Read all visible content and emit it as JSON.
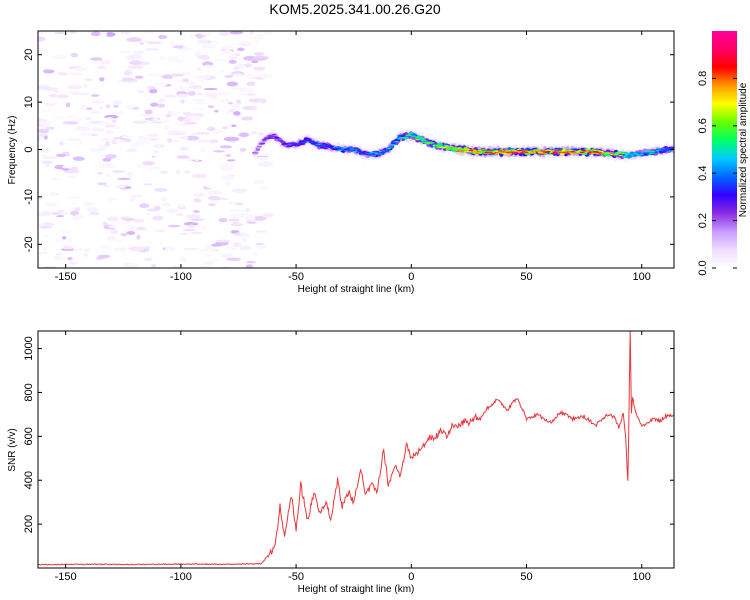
{
  "title": "KOM5.2025.341.00.26.G20",
  "chart_data": [
    {
      "type": "heatmap",
      "panel": "top",
      "xlabel": "Height of straight line (km)",
      "ylabel": "Frequency (Hz)",
      "xlim": [
        -162,
        114
      ],
      "ylim": [
        -25,
        25
      ],
      "xticks": [
        -150,
        -100,
        -50,
        0,
        50,
        100
      ],
      "yticks": [
        -20,
        -10,
        0,
        10,
        20
      ],
      "colorbar": {
        "label": "Normalized spectral amplitude",
        "range": [
          0,
          1
        ],
        "ticks": [
          0.0,
          0.2,
          0.4,
          0.6,
          0.8
        ],
        "colormap": [
          "#ffffff",
          "#f0dcff",
          "#c89cff",
          "#8a2be2",
          "#3300ff",
          "#0066ff",
          "#00ccff",
          "#00ff66",
          "#66ff00",
          "#ffff00",
          "#ff9900",
          "#ff0000",
          "#ff0066",
          "#ff0099"
        ]
      },
      "noise_region_x": [
        -162,
        -68
      ],
      "onset_x": -68,
      "ridge": {
        "x": [
          -68,
          -64,
          -60,
          -55,
          -50,
          -45,
          -40,
          -35,
          -30,
          -25,
          -20,
          -15,
          -10,
          -5,
          0,
          5,
          10,
          15,
          20,
          30,
          40,
          50,
          60,
          70,
          80,
          90,
          95,
          100,
          105,
          110,
          114
        ],
        "frequency": [
          -1,
          2,
          3,
          1,
          1,
          2,
          1,
          0.5,
          0,
          0,
          -1,
          -1,
          0,
          2.5,
          3,
          2,
          1,
          0.5,
          0,
          -0.5,
          -0.5,
          -0.5,
          -0.5,
          -0.5,
          -0.5,
          -1,
          -1.2,
          -0.8,
          -0.5,
          0,
          0
        ],
        "amplitude": [
          0.2,
          0.25,
          0.3,
          0.3,
          0.35,
          0.4,
          0.45,
          0.4,
          0.5,
          0.45,
          0.4,
          0.45,
          0.45,
          0.55,
          0.6,
          0.62,
          0.65,
          0.7,
          0.8,
          0.85,
          0.9,
          0.95,
          0.9,
          0.93,
          0.88,
          0.7,
          0.55,
          0.5,
          0.5,
          0.45,
          0.4
        ]
      }
    },
    {
      "type": "line",
      "panel": "bottom",
      "xlabel": "Height of straight line (km)",
      "ylabel": "SNR (v/v)",
      "xlim": [
        -162,
        114
      ],
      "ylim": [
        0,
        1080
      ],
      "xticks": [
        -150,
        -100,
        -50,
        0,
        50,
        100
      ],
      "yticks": [
        200,
        400,
        600,
        800,
        1000
      ],
      "series": [
        {
          "name": "SNR",
          "color": "#e8363a",
          "x": [
            -162,
            -140,
            -120,
            -100,
            -80,
            -65,
            -62,
            -59,
            -57,
            -55,
            -52,
            -50,
            -48,
            -45,
            -42,
            -40,
            -37,
            -35,
            -32,
            -30,
            -27,
            -25,
            -22,
            -20,
            -17,
            -15,
            -12,
            -10,
            -7,
            -5,
            -2,
            0,
            3,
            5,
            8,
            10,
            13,
            15,
            18,
            20,
            23,
            25,
            28,
            30,
            33,
            35,
            37,
            40,
            42,
            44,
            46,
            48,
            50,
            55,
            60,
            65,
            70,
            75,
            80,
            85,
            88,
            90,
            92,
            93,
            94,
            95,
            95.5,
            96,
            97,
            98,
            100,
            103,
            105,
            108,
            110,
            114
          ],
          "values": [
            15,
            17,
            16,
            18,
            17,
            20,
            60,
            100,
            280,
            150,
            330,
            170,
            380,
            220,
            350,
            250,
            300,
            220,
            400,
            280,
            350,
            290,
            460,
            330,
            380,
            340,
            540,
            380,
            470,
            420,
            560,
            500,
            530,
            550,
            600,
            590,
            630,
            600,
            650,
            640,
            670,
            660,
            690,
            680,
            730,
            740,
            770,
            740,
            720,
            760,
            770,
            730,
            680,
            700,
            660,
            710,
            680,
            690,
            650,
            700,
            690,
            640,
            700,
            600,
            390,
            1080,
            700,
            780,
            720,
            690,
            650,
            660,
            680,
            670,
            690,
            700
          ]
        }
      ]
    }
  ]
}
